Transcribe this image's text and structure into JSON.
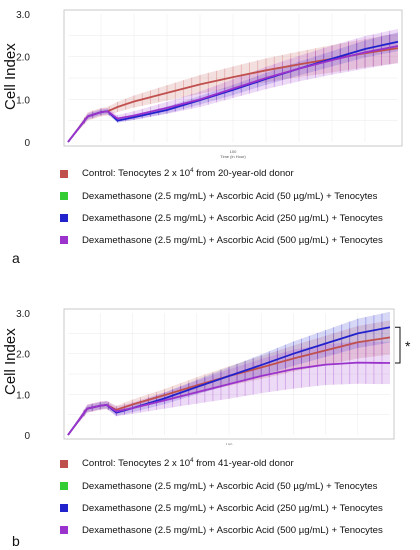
{
  "colors": {
    "control": "#c0504d",
    "dex_aa50": "#33cc33",
    "dex_aa250": "#2222cc",
    "dex_aa500": "#9933cc"
  },
  "panels": [
    {
      "letter": "a",
      "ylabel": "Cell Index",
      "inner_xlabel": "Time (in Hour)",
      "inner_xtick": "100",
      "significance": "",
      "legend": [
        {
          "pre": "Control: Tenocytes 2 x 10",
          "sup": "4",
          "post": " from 20-year-old donor",
          "color": "#c0504d"
        },
        {
          "pre": "Dexamethasone (2.5 mg/mL) + Ascorbic Acid (50 µg/mL) + Tenocytes",
          "sup": "",
          "post": "",
          "color": "#33cc33"
        },
        {
          "pre": "Dexamethasone (2.5 mg/mL) + Ascorbic Acid (250 µg/mL) + Tenocytes",
          "sup": "",
          "post": "",
          "color": "#2222cc"
        },
        {
          "pre": "Dexamethasone (2.5 mg/mL) + Ascorbic Acid (500 µg/mL) + Tenocytes",
          "sup": "",
          "post": "",
          "color": "#9933cc"
        }
      ]
    },
    {
      "letter": "b",
      "ylabel": "Cell Index",
      "inner_xlabel": "Time (in Hour)",
      "inner_xtick": "100",
      "significance": "*",
      "legend": [
        {
          "pre": "Control: Tenocytes 2 x 10",
          "sup": "4",
          "post": " from 41-year-old donor",
          "color": "#c0504d"
        },
        {
          "pre": "Dexamethasone (2.5 mg/mL) + Ascorbic Acid (50 µg/mL) + Tenocytes",
          "sup": "",
          "post": "",
          "color": "#33cc33"
        },
        {
          "pre": "Dexamethasone (2.5 mg/mL) + Ascorbic Acid (250 µg/mL) + Tenocytes",
          "sup": "",
          "post": "",
          "color": "#2222cc"
        },
        {
          "pre": "Dexamethasone (2.5 mg/mL) + Ascorbic Acid (500 µg/mL) + Tenocytes",
          "sup": "",
          "post": "",
          "color": "#9933cc"
        }
      ]
    }
  ],
  "chart_data": [
    {
      "type": "line",
      "panel": "a",
      "ylabel": "Cell Index",
      "xlabel": "",
      "ylim": [
        0,
        3
      ],
      "yticks": [
        "0",
        "1.0",
        "2.0",
        "3.0"
      ],
      "x": [
        0,
        0.06,
        0.1,
        0.12,
        0.15,
        0.2,
        0.3,
        0.4,
        0.5,
        0.6,
        0.7,
        0.8,
        0.9,
        1.0
      ],
      "series": [
        {
          "name": "Control: Tenocytes 2 x 10^4 from 20-year-old donor",
          "color": "#c0504d",
          "values": [
            0,
            0.6,
            0.7,
            0.72,
            0.82,
            0.95,
            1.15,
            1.35,
            1.52,
            1.68,
            1.82,
            1.95,
            2.08,
            2.2
          ],
          "err": [
            0,
            0.1,
            0.1,
            0.1,
            0.12,
            0.14,
            0.18,
            0.22,
            0.25,
            0.28,
            0.3,
            0.32,
            0.33,
            0.35
          ]
        },
        {
          "name": "Dexamethasone (2.5 mg/mL) + Ascorbic Acid (250 µg/mL) + Tenocytes",
          "color": "#2222cc",
          "values": [
            0,
            0.6,
            0.7,
            0.72,
            0.5,
            0.58,
            0.75,
            0.98,
            1.22,
            1.48,
            1.72,
            1.95,
            2.18,
            2.35
          ],
          "err": [
            0,
            0.06,
            0.06,
            0.06,
            0.05,
            0.06,
            0.08,
            0.1,
            0.12,
            0.14,
            0.16,
            0.18,
            0.2,
            0.22
          ]
        },
        {
          "name": "Dexamethasone (2.5 mg/mL) + Ascorbic Acid (500 µg/mL) + Tenocytes",
          "color": "#9933cc",
          "values": [
            0,
            0.6,
            0.7,
            0.72,
            0.55,
            0.62,
            0.8,
            1.0,
            1.25,
            1.5,
            1.72,
            1.92,
            2.1,
            2.25
          ],
          "err": [
            0,
            0.08,
            0.08,
            0.08,
            0.08,
            0.1,
            0.14,
            0.18,
            0.22,
            0.26,
            0.3,
            0.34,
            0.38,
            0.4
          ]
        }
      ]
    },
    {
      "type": "line",
      "panel": "b",
      "ylabel": "Cell Index",
      "xlabel": "",
      "ylim": [
        0,
        3
      ],
      "yticks": [
        "0",
        "1.0",
        "2.0",
        "3.0"
      ],
      "x": [
        0,
        0.06,
        0.1,
        0.12,
        0.15,
        0.2,
        0.3,
        0.4,
        0.5,
        0.6,
        0.7,
        0.8,
        0.9,
        1.0
      ],
      "series": [
        {
          "name": "Control: Tenocytes 2 x 10^4 from 41-year-old donor",
          "color": "#c0504d",
          "values": [
            0,
            0.65,
            0.72,
            0.74,
            0.62,
            0.75,
            0.98,
            1.22,
            1.45,
            1.66,
            1.88,
            2.08,
            2.28,
            2.4
          ],
          "err": [
            0,
            0.1,
            0.1,
            0.1,
            0.1,
            0.12,
            0.15,
            0.2,
            0.24,
            0.28,
            0.32,
            0.36,
            0.4,
            0.42
          ]
        },
        {
          "name": "Dexamethasone (2.5 mg/mL) + Ascorbic Acid (250 µg/mL) + Tenocytes",
          "color": "#2222cc",
          "values": [
            0,
            0.65,
            0.72,
            0.74,
            0.55,
            0.66,
            0.9,
            1.18,
            1.45,
            1.72,
            2.0,
            2.25,
            2.5,
            2.65
          ],
          "err": [
            0,
            0.08,
            0.08,
            0.08,
            0.08,
            0.1,
            0.14,
            0.18,
            0.22,
            0.26,
            0.3,
            0.33,
            0.36,
            0.38
          ]
        },
        {
          "name": "Dexamethasone (2.5 mg/mL) + Ascorbic Acid (500 µg/mL) + Tenocytes",
          "color": "#9933cc",
          "values": [
            0,
            0.65,
            0.72,
            0.74,
            0.58,
            0.66,
            0.85,
            1.05,
            1.25,
            1.45,
            1.62,
            1.73,
            1.78,
            1.77
          ],
          "err": [
            0,
            0.1,
            0.1,
            0.1,
            0.12,
            0.14,
            0.2,
            0.28,
            0.36,
            0.42,
            0.48,
            0.5,
            0.52,
            0.52
          ]
        }
      ]
    }
  ]
}
